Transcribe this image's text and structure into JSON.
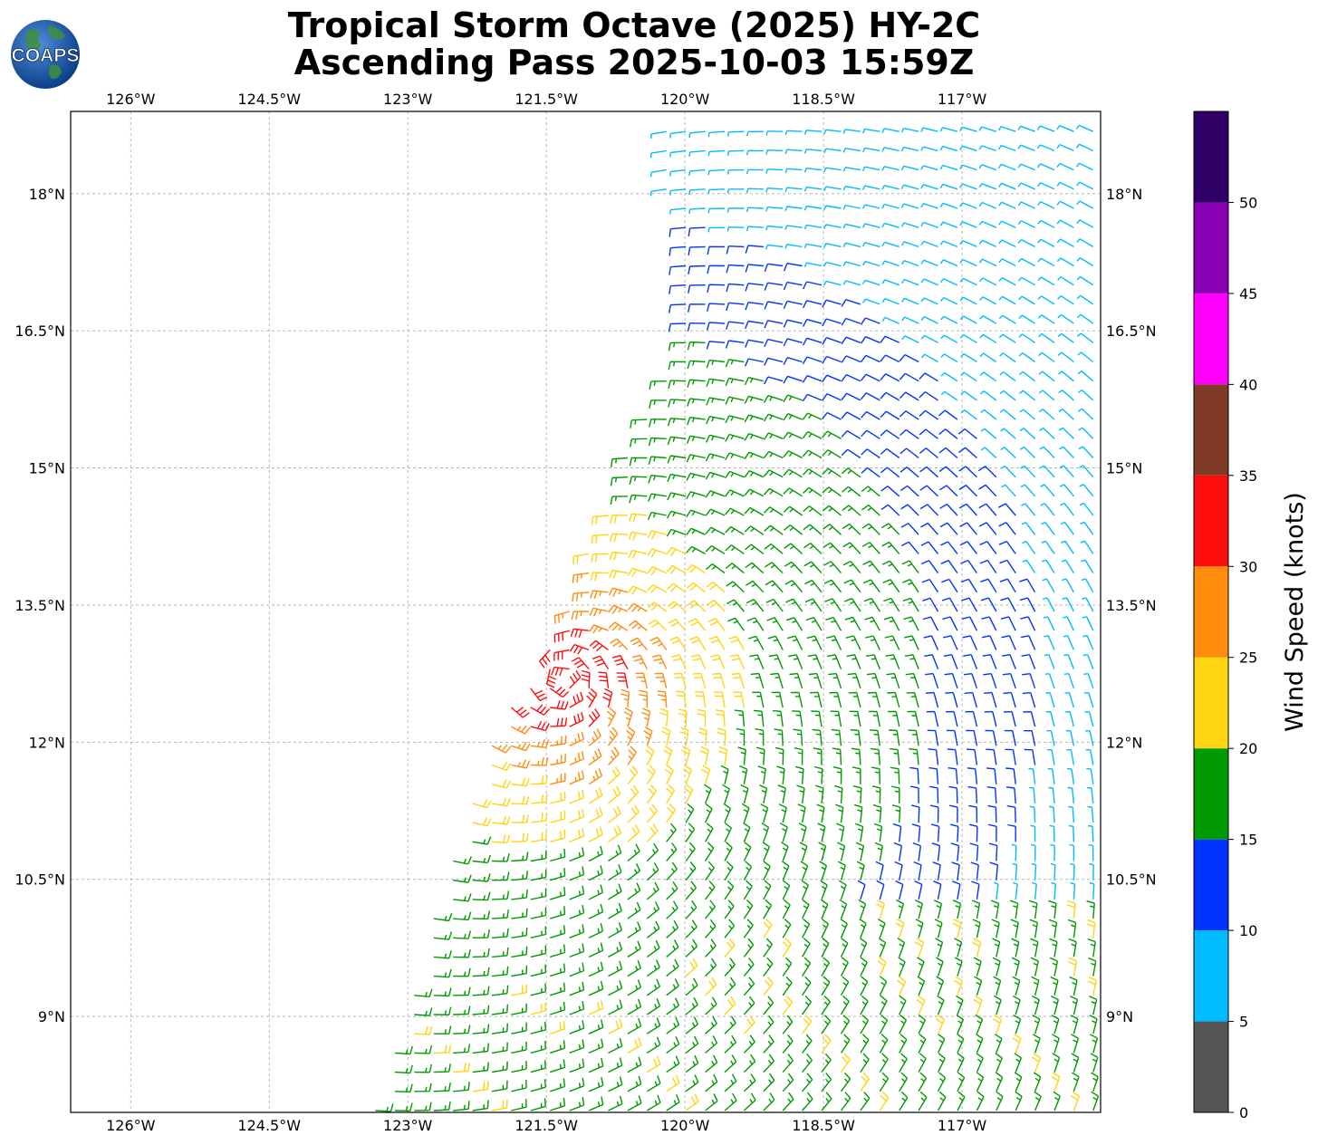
{
  "header": {
    "title_line1": "Tropical Storm Octave (2025) HY-2C",
    "title_line2": "Ascending Pass 2025-10-03 15:59Z",
    "logo_text": "COAPS"
  },
  "map": {
    "lon_range": [
      -126.65,
      -115.5
    ],
    "lat_range": [
      7.95,
      18.9
    ],
    "lon_ticks": [
      {
        "value": -126,
        "label": "126°W"
      },
      {
        "value": -124.5,
        "label": "124.5°W"
      },
      {
        "value": -123,
        "label": "123°W"
      },
      {
        "value": -121.5,
        "label": "121.5°W"
      },
      {
        "value": -120,
        "label": "120°W"
      },
      {
        "value": -118.5,
        "label": "118.5°W"
      },
      {
        "value": -117,
        "label": "117°W"
      }
    ],
    "lat_ticks": [
      {
        "value": 18,
        "label": "18°N"
      },
      {
        "value": 16.5,
        "label": "16.5°N"
      },
      {
        "value": 15,
        "label": "15°N"
      },
      {
        "value": 13.5,
        "label": "13.5°N"
      },
      {
        "value": 12,
        "label": "12°N"
      },
      {
        "value": 10.5,
        "label": "10.5°N"
      },
      {
        "value": 9,
        "label": "9°N"
      }
    ],
    "gridlines": true,
    "storm_center": {
      "lon": -121.3,
      "lat": 12.7
    }
  },
  "colorbar": {
    "label": "Wind Speed (knots)",
    "bounds": [
      0,
      5,
      10,
      15,
      20,
      25,
      30,
      35,
      40,
      45,
      50,
      55
    ],
    "tick_labels": [
      "0",
      "5",
      "10",
      "15",
      "20",
      "25",
      "30",
      "35",
      "40",
      "45",
      "50"
    ],
    "colors": [
      "#555555",
      "#00bbff",
      "#0033ff",
      "#009900",
      "#ffd411",
      "#ff8c0d",
      "#ff0d0d",
      "#803b26",
      "#ff00ff",
      "#8800b3",
      "#2e0066"
    ]
  }
}
